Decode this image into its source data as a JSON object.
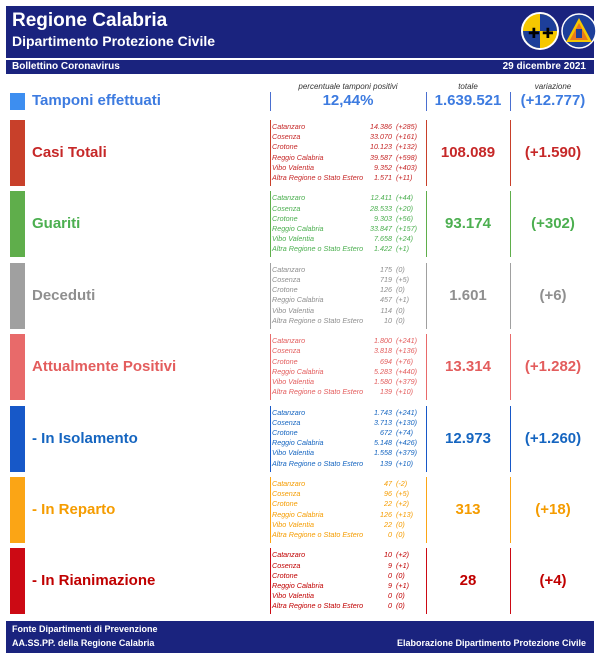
{
  "header": {
    "title": "Regione Calabria",
    "subtitle": "Dipartimento Protezione Civile"
  },
  "bulletin": {
    "label": "Bollettino Coronavirus",
    "date": "29 dicembre 2021"
  },
  "columns": {
    "pct_label": "percentuale tamponi positivi",
    "total_label": "totale",
    "variation_label": "variazione"
  },
  "tamponi": {
    "label": "Tamponi effettuati",
    "pct": "12,44%",
    "total": "1.639.521",
    "variation": "(+12.777)",
    "color": "#3d7be0"
  },
  "sections": [
    {
      "key": "casi",
      "label": "Casi Totali",
      "color": "#c62828",
      "bar": "#c8402a",
      "total": "108.089",
      "variation": "(+1.590)",
      "rows": [
        {
          "name": "Catanzaro",
          "value": "14.386",
          "delta": "(+285)"
        },
        {
          "name": "Cosenza",
          "value": "33.070",
          "delta": "(+161)"
        },
        {
          "name": "Crotone",
          "value": "10.123",
          "delta": "(+132)"
        },
        {
          "name": "Reggio Calabria",
          "value": "39.587",
          "delta": "(+598)"
        },
        {
          "name": "Vibo Valentia",
          "value": "9.352",
          "delta": "(+403)"
        },
        {
          "name": "Altra Regione o Stato Estero",
          "value": "1.571",
          "delta": "(+11)"
        }
      ]
    },
    {
      "key": "guariti",
      "label": "Guariti",
      "color": "#4caf50",
      "bar": "#5fae4b",
      "total": "93.174",
      "variation": "(+302)",
      "rows": [
        {
          "name": "Catanzaro",
          "value": "12.411",
          "delta": "(+44)"
        },
        {
          "name": "Cosenza",
          "value": "28.533",
          "delta": "(+20)"
        },
        {
          "name": "Crotone",
          "value": "9.303",
          "delta": "(+56)"
        },
        {
          "name": "Reggio Calabria",
          "value": "33.847",
          "delta": "(+157)"
        },
        {
          "name": "Vibo Valentia",
          "value": "7.658",
          "delta": "(+24)"
        },
        {
          "name": "Altra Regione o Stato Estero",
          "value": "1.422",
          "delta": "(+1)"
        }
      ]
    },
    {
      "key": "deceduti",
      "label": "Deceduti",
      "color": "#8f8f8f",
      "bar": "#a0a0a0",
      "total": "1.601",
      "variation": "(+6)",
      "rows": [
        {
          "name": "Catanzaro",
          "value": "175",
          "delta": "(0)"
        },
        {
          "name": "Cosenza",
          "value": "719",
          "delta": "(+5)"
        },
        {
          "name": "Crotone",
          "value": "126",
          "delta": "(0)"
        },
        {
          "name": "Reggio Calabria",
          "value": "457",
          "delta": "(+1)"
        },
        {
          "name": "Vibo Valentia",
          "value": "114",
          "delta": "(0)"
        },
        {
          "name": "Altra Regione o Stato Estero",
          "value": "10",
          "delta": "(0)"
        }
      ]
    },
    {
      "key": "positivi",
      "label": "Attualmente Positivi",
      "color": "#e35d5d",
      "bar": "#e86a6a",
      "total": "13.314",
      "variation": "(+1.282)",
      "rows": [
        {
          "name": "Catanzaro",
          "value": "1.800",
          "delta": "(+241)"
        },
        {
          "name": "Cosenza",
          "value": "3.818",
          "delta": "(+136)"
        },
        {
          "name": "Crotone",
          "value": "694",
          "delta": "(+76)"
        },
        {
          "name": "Reggio Calabria",
          "value": "5.283",
          "delta": "(+440)"
        },
        {
          "name": "Vibo Valentia",
          "value": "1.580",
          "delta": "(+379)"
        },
        {
          "name": "Altra Regione o Stato Estero",
          "value": "139",
          "delta": "(+10)"
        }
      ]
    },
    {
      "key": "isolamento",
      "label": "- In Isolamento",
      "color": "#1565c0",
      "bar": "#1758c8",
      "total": "12.973",
      "variation": "(+1.260)",
      "rows": [
        {
          "name": "Catanzaro",
          "value": "1.743",
          "delta": "(+241)"
        },
        {
          "name": "Cosenza",
          "value": "3.713",
          "delta": "(+130)"
        },
        {
          "name": "Crotone",
          "value": "672",
          "delta": "(+74)"
        },
        {
          "name": "Reggio Calabria",
          "value": "5.148",
          "delta": "(+426)"
        },
        {
          "name": "Vibo Valentia",
          "value": "1.558",
          "delta": "(+379)"
        },
        {
          "name": "Altra Regione o Stato Estero",
          "value": "139",
          "delta": "(+10)"
        }
      ]
    },
    {
      "key": "reparto",
      "label": "- In Reparto",
      "color": "#f59c00",
      "bar": "#fba515",
      "total": "313",
      "variation": "(+18)",
      "rows": [
        {
          "name": "Catanzaro",
          "value": "47",
          "delta": "(-2)"
        },
        {
          "name": "Cosenza",
          "value": "96",
          "delta": "(+5)"
        },
        {
          "name": "Crotone",
          "value": "22",
          "delta": "(+2)"
        },
        {
          "name": "Reggio Calabria",
          "value": "126",
          "delta": "(+13)"
        },
        {
          "name": "Vibo Valentia",
          "value": "22",
          "delta": "(0)"
        },
        {
          "name": "Altra Regione o Stato Estero",
          "value": "0",
          "delta": "(0)"
        }
      ]
    },
    {
      "key": "rianimazione",
      "label": "- In Rianimazione",
      "color": "#c00000",
      "bar": "#cc0a14",
      "total": "28",
      "variation": "(+4)",
      "rows": [
        {
          "name": "Catanzaro",
          "value": "10",
          "delta": "(+2)"
        },
        {
          "name": "Cosenza",
          "value": "9",
          "delta": "(+1)"
        },
        {
          "name": "Crotone",
          "value": "0",
          "delta": "(0)"
        },
        {
          "name": "Reggio Calabria",
          "value": "9",
          "delta": "(+1)"
        },
        {
          "name": "Vibo Valentia",
          "value": "0",
          "delta": "(0)"
        },
        {
          "name": "Altra Regione o Stato Estero",
          "value": "0",
          "delta": "(0)"
        }
      ]
    }
  ],
  "footer": {
    "line1": "Fonte Dipartimenti di Prevenzione",
    "line2": "AA.SS.PP.  della Regione Calabria",
    "right": "Elaborazione Dipartimento Protezione Civile"
  },
  "logos": {
    "region_logo": "regione-calabria-logo",
    "civil_protection_logo": "protezione-civile-logo"
  }
}
